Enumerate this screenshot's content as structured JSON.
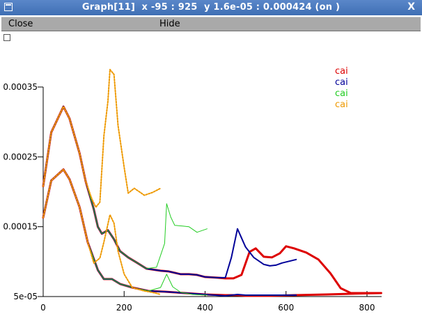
{
  "window": {
    "title": "Graph[11]  x -95 : 925  y 1.6e-05 : 0.000424 (on )",
    "icon": "window-menu-icon",
    "close_glyph": "X"
  },
  "menu": {
    "close_label": "Close",
    "hide_label": "Hide"
  },
  "chart_data": {
    "type": "line",
    "title": "",
    "xlabel": "",
    "ylabel": "",
    "xlim": [
      0,
      830
    ],
    "ylim": [
      5e-05,
      0.00038
    ],
    "x_ticks": [
      0,
      200,
      400,
      600,
      800
    ],
    "x_tick_labels": [
      "0",
      "200",
      "400",
      "600",
      "800"
    ],
    "y_ticks": [
      5e-05,
      0.00015,
      0.00025,
      0.00035
    ],
    "y_tick_labels": [
      "5e-05",
      "0.00015",
      "0.00025",
      "0.00035"
    ],
    "grid": false,
    "legend_position": "top-right",
    "series": [
      {
        "name": "cai",
        "color": "#dd0000",
        "style": "solid",
        "width": 3,
        "points": [
          [
            0,
            0.000208
          ],
          [
            20,
            0.000285
          ],
          [
            50,
            0.000322
          ],
          [
            65,
            0.000305
          ],
          [
            90,
            0.000255
          ],
          [
            105,
            0.000215
          ],
          [
            125,
            0.000175
          ],
          [
            135,
            0.00015
          ],
          [
            145,
            0.00014
          ],
          [
            160,
            0.000145
          ],
          [
            175,
            0.000132
          ],
          [
            190,
            0.000115
          ],
          [
            210,
            0.000106
          ],
          [
            230,
            9.9e-05
          ],
          [
            255,
            9e-05
          ],
          [
            290,
            8.7e-05
          ],
          [
            310,
            8.6e-05
          ],
          [
            340,
            8.2e-05
          ],
          [
            360,
            8.2e-05
          ],
          [
            380,
            8.1e-05
          ],
          [
            400,
            7.8e-05
          ],
          [
            430,
            7.7e-05
          ],
          [
            450,
            7.6e-05
          ],
          [
            470,
            7.6e-05
          ],
          [
            490,
            8.1e-05
          ],
          [
            510,
            0.000114
          ],
          [
            525,
            0.000119
          ],
          [
            545,
            0.000107
          ],
          [
            565,
            0.000106
          ],
          [
            585,
            0.000112
          ],
          [
            600,
            0.000122
          ],
          [
            620,
            0.000119
          ],
          [
            650,
            0.000113
          ],
          [
            680,
            0.000103
          ],
          [
            710,
            8.3e-05
          ],
          [
            735,
            6.2e-05
          ],
          [
            760,
            5.5e-05
          ],
          [
            800,
            5.5e-05
          ],
          [
            835,
            5.5e-05
          ]
        ]
      },
      {
        "name": "cai",
        "color": "#000099",
        "style": "solid",
        "width": 2,
        "points": [
          [
            0,
            0.000208
          ],
          [
            20,
            0.000285
          ],
          [
            50,
            0.000322
          ],
          [
            65,
            0.000305
          ],
          [
            90,
            0.000255
          ],
          [
            105,
            0.000215
          ],
          [
            125,
            0.000175
          ],
          [
            135,
            0.00015
          ],
          [
            145,
            0.00014
          ],
          [
            160,
            0.000145
          ],
          [
            175,
            0.000132
          ],
          [
            190,
            0.000115
          ],
          [
            210,
            0.000106
          ],
          [
            230,
            9.9e-05
          ],
          [
            255,
            9e-05
          ],
          [
            290,
            8.7e-05
          ],
          [
            310,
            8.6e-05
          ],
          [
            340,
            8.2e-05
          ],
          [
            360,
            8.2e-05
          ],
          [
            380,
            8.1e-05
          ],
          [
            400,
            7.8e-05
          ],
          [
            430,
            7.7e-05
          ],
          [
            450,
            7.7e-05
          ],
          [
            465,
            0.000106
          ],
          [
            480,
            0.000147
          ],
          [
            500,
            0.000121
          ],
          [
            520,
            0.000106
          ],
          [
            545,
            9.6e-05
          ],
          [
            560,
            9.4e-05
          ],
          [
            575,
            9.5e-05
          ],
          [
            590,
            9.8e-05
          ],
          [
            625,
            0.000103
          ]
        ]
      },
      {
        "name": "cai",
        "color": "#22cc22",
        "style": "solid",
        "width": 1,
        "points": [
          [
            0,
            0.000208
          ],
          [
            20,
            0.000285
          ],
          [
            50,
            0.000322
          ],
          [
            65,
            0.000305
          ],
          [
            90,
            0.000255
          ],
          [
            105,
            0.000215
          ],
          [
            125,
            0.000175
          ],
          [
            135,
            0.00015
          ],
          [
            145,
            0.00014
          ],
          [
            160,
            0.000145
          ],
          [
            175,
            0.000132
          ],
          [
            190,
            0.000115
          ],
          [
            210,
            0.000106
          ],
          [
            230,
            9.9e-05
          ],
          [
            255,
            9e-05
          ],
          [
            280,
            9.2e-05
          ],
          [
            300,
            0.000126
          ],
          [
            305,
            0.000183
          ],
          [
            315,
            0.000164
          ],
          [
            325,
            0.000152
          ],
          [
            345,
            0.000151
          ],
          [
            360,
            0.00015
          ],
          [
            380,
            0.000142
          ],
          [
            405,
            0.000147
          ]
        ]
      },
      {
        "name": "cai",
        "color": "#ee9900",
        "style": "dotted",
        "width": 2,
        "points": [
          [
            0,
            0.000208
          ],
          [
            20,
            0.000285
          ],
          [
            50,
            0.000322
          ],
          [
            65,
            0.000305
          ],
          [
            90,
            0.000255
          ],
          [
            105,
            0.000215
          ],
          [
            120,
            0.00019
          ],
          [
            130,
            0.000178
          ],
          [
            140,
            0.000185
          ],
          [
            150,
            0.00028
          ],
          [
            160,
            0.00033
          ],
          [
            165,
            0.000375
          ],
          [
            175,
            0.000368
          ],
          [
            185,
            0.000295
          ],
          [
            200,
            0.000235
          ],
          [
            210,
            0.000198
          ],
          [
            225,
            0.000205
          ],
          [
            250,
            0.000195
          ],
          [
            270,
            0.000199
          ],
          [
            290,
            0.000205
          ]
        ]
      },
      {
        "name": "cai",
        "color": "#dd0000",
        "style": "solid",
        "width": 3,
        "points": [
          [
            0,
            0.000163
          ],
          [
            20,
            0.000216
          ],
          [
            50,
            0.000232
          ],
          [
            65,
            0.000218
          ],
          [
            90,
            0.000178
          ],
          [
            110,
            0.000128
          ],
          [
            135,
            8.8e-05
          ],
          [
            150,
            7.5e-05
          ],
          [
            170,
            7.5e-05
          ],
          [
            190,
            6.8e-05
          ],
          [
            220,
            6.3e-05
          ],
          [
            260,
            5.8e-05
          ],
          [
            300,
            5.7e-05
          ],
          [
            350,
            5.5e-05
          ],
          [
            400,
            5.3e-05
          ],
          [
            450,
            5.2e-05
          ],
          [
            480,
            5.2e-05
          ],
          [
            500,
            5.1e-05
          ],
          [
            560,
            5.1e-05
          ],
          [
            620,
            5.2e-05
          ],
          [
            700,
            5.3e-05
          ],
          [
            760,
            5.4e-05
          ],
          [
            835,
            5.5e-05
          ]
        ]
      },
      {
        "name": "cai",
        "color": "#000099",
        "style": "solid",
        "width": 2,
        "points": [
          [
            0,
            0.000163
          ],
          [
            20,
            0.000216
          ],
          [
            50,
            0.000232
          ],
          [
            65,
            0.000218
          ],
          [
            90,
            0.000178
          ],
          [
            110,
            0.000128
          ],
          [
            135,
            8.8e-05
          ],
          [
            150,
            7.5e-05
          ],
          [
            170,
            7.5e-05
          ],
          [
            190,
            6.8e-05
          ],
          [
            220,
            6.3e-05
          ],
          [
            260,
            5.8e-05
          ],
          [
            300,
            5.7e-05
          ],
          [
            350,
            5.5e-05
          ],
          [
            400,
            5.3e-05
          ],
          [
            450,
            5.1e-05
          ],
          [
            480,
            5.3e-05
          ],
          [
            500,
            5.2e-05
          ],
          [
            560,
            5.2e-05
          ],
          [
            625,
            5.2e-05
          ]
        ]
      },
      {
        "name": "cai",
        "color": "#22cc22",
        "style": "solid",
        "width": 1,
        "points": [
          [
            0,
            0.000163
          ],
          [
            20,
            0.000216
          ],
          [
            50,
            0.000232
          ],
          [
            65,
            0.000218
          ],
          [
            90,
            0.000178
          ],
          [
            110,
            0.000128
          ],
          [
            135,
            8.8e-05
          ],
          [
            150,
            7.5e-05
          ],
          [
            170,
            7.5e-05
          ],
          [
            190,
            6.8e-05
          ],
          [
            220,
            6.3e-05
          ],
          [
            260,
            5.8e-05
          ],
          [
            290,
            6.3e-05
          ],
          [
            305,
            8.2e-05
          ],
          [
            320,
            6.4e-05
          ],
          [
            340,
            5.6e-05
          ],
          [
            370,
            5.3e-05
          ],
          [
            405,
            5.2e-05
          ]
        ]
      },
      {
        "name": "cai",
        "color": "#ee9900",
        "style": "dotted",
        "width": 2,
        "points": [
          [
            0,
            0.000163
          ],
          [
            20,
            0.000216
          ],
          [
            50,
            0.000232
          ],
          [
            65,
            0.000218
          ],
          [
            90,
            0.000178
          ],
          [
            110,
            0.000128
          ],
          [
            125,
            9.8e-05
          ],
          [
            140,
            0.000105
          ],
          [
            150,
            0.000128
          ],
          [
            165,
            0.000167
          ],
          [
            175,
            0.000155
          ],
          [
            185,
            0.000115
          ],
          [
            200,
            8.2e-05
          ],
          [
            220,
            6.3e-05
          ],
          [
            250,
            5.8e-05
          ],
          [
            270,
            5.6e-05
          ],
          [
            290,
            5.3e-05
          ]
        ]
      }
    ],
    "legend": [
      {
        "label": "cai",
        "color": "#dd0000"
      },
      {
        "label": "cai",
        "color": "#000099"
      },
      {
        "label": "cai",
        "color": "#22cc22"
      },
      {
        "label": "cai",
        "color": "#ee9900"
      }
    ]
  }
}
